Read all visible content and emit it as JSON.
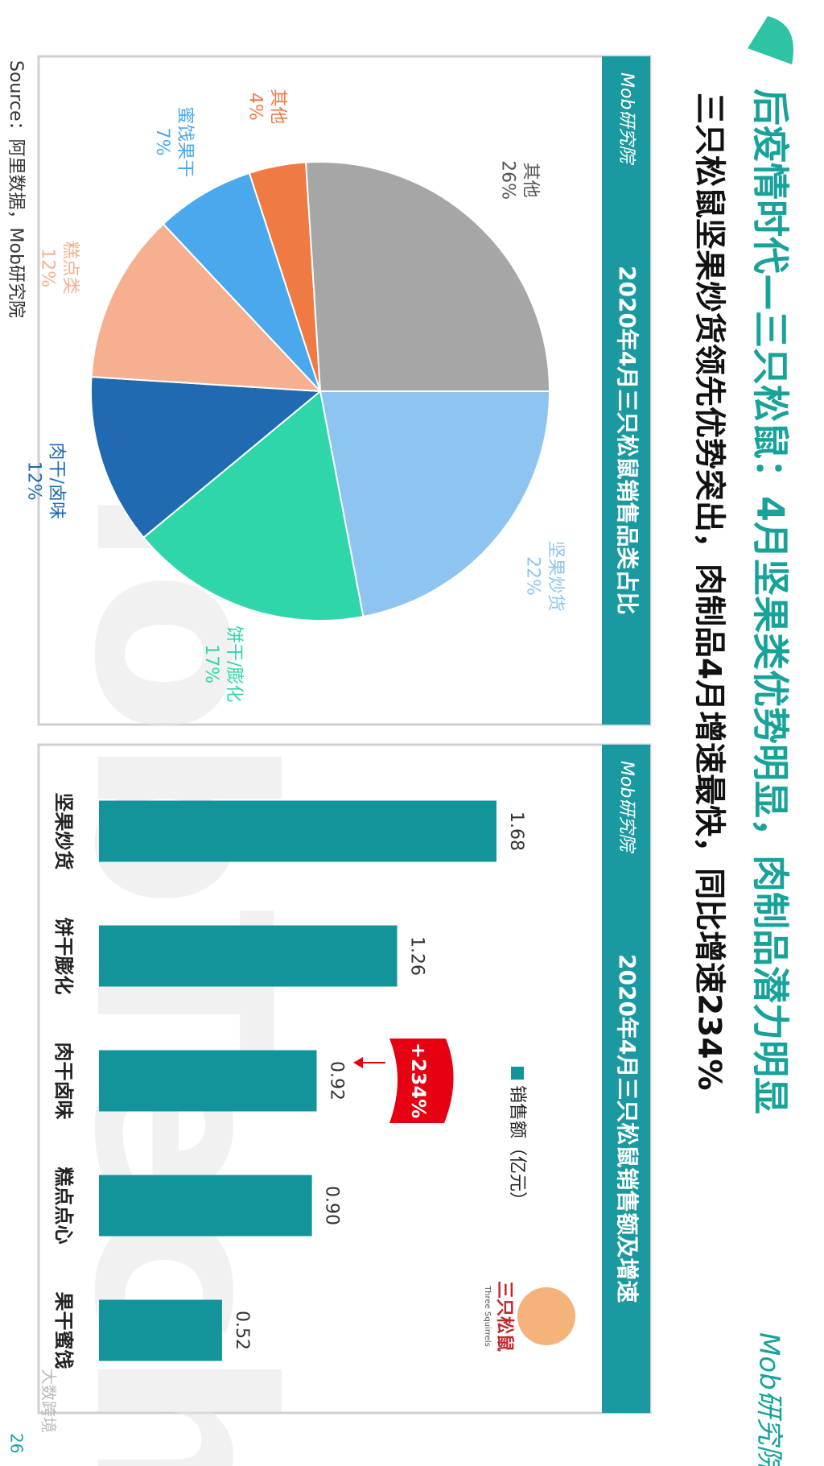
{
  "page": {
    "title": "后疫情时代—三只松鼠：4月坚果类优势明显，肉制品潜力明显",
    "subtitle": "三只松鼠坚果炒货领先优势突出，肉制品4月增速最快，同比增速234%",
    "brand": "Mob研究院",
    "watermark": "MobTech",
    "source": "Source：阿里数据，Mob研究院",
    "page_number": "26",
    "footer_watermark": "大数跨境",
    "logo_text": "三只松鼠",
    "logo_subtext": "Three Squirrels"
  },
  "chart_data": [
    {
      "type": "pie",
      "title": "2020年4月三只松鼠销售品类占比",
      "categories": [
        "坚果炒货",
        "饼干/膨化",
        "肉干/卤味",
        "糕点类",
        "蜜饯果干",
        "其他",
        "其他"
      ],
      "values": [
        22,
        17,
        12,
        12,
        7,
        4,
        26
      ],
      "value_labels": [
        "22%",
        "17%",
        "12%",
        "12%",
        "7%",
        "4%",
        "26%"
      ],
      "colors": [
        "#8ec5f0",
        "#2fd6aa",
        "#1f6ab0",
        "#f7b08f",
        "#4aa8ec",
        "#f07a43",
        "#a6a6a6"
      ]
    },
    {
      "type": "bar",
      "title": "2020年4月三只松鼠销售额及增速",
      "categories": [
        "坚果炒货",
        "饼干膨化",
        "肉干卤味",
        "糕点点心",
        "果干蜜饯"
      ],
      "series": [
        {
          "name": "销售额（亿元）",
          "color": "#13949a",
          "values": [
            1.68,
            1.26,
            0.92,
            0.9,
            0.52
          ],
          "value_labels": [
            "1.68",
            "1.26",
            "0.92",
            "0.90",
            "0.52"
          ]
        }
      ],
      "annotation": "+234%"
    }
  ]
}
